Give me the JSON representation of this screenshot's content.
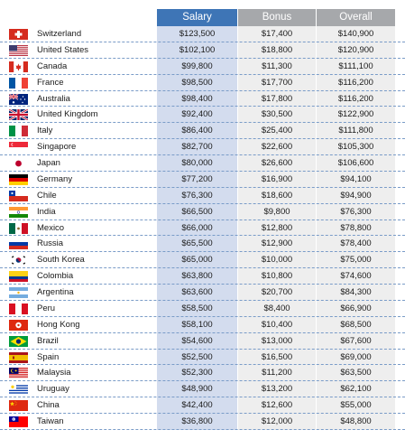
{
  "columns": {
    "salary": "Salary",
    "bonus": "Bonus",
    "overall": "Overall"
  },
  "colors": {
    "salary_header": "#3e75b6",
    "other_header": "#a6a8ab",
    "salary_column": "#d3dcee",
    "other_column": "#eeeeee",
    "row_divider": "#7a9cc8"
  },
  "rows": [
    {
      "country": "Switzerland",
      "flag": "switzerland-flag-icon",
      "salary": "$123,500",
      "bonus": "$17,400",
      "overall": "$140,900"
    },
    {
      "country": "United States",
      "flag": "united-states-flag-icon",
      "salary": "$102,100",
      "bonus": "$18,800",
      "overall": "$120,900"
    },
    {
      "country": "Canada",
      "flag": "canada-flag-icon",
      "salary": "$99,800",
      "bonus": "$11,300",
      "overall": "$111,100"
    },
    {
      "country": "France",
      "flag": "france-flag-icon",
      "salary": "$98,500",
      "bonus": "$17,700",
      "overall": "$116,200"
    },
    {
      "country": "Australia",
      "flag": "australia-flag-icon",
      "salary": "$98,400",
      "bonus": "$17,800",
      "overall": "$116,200"
    },
    {
      "country": "United Kingdom",
      "flag": "united-kingdom-flag-icon",
      "salary": "$92,400",
      "bonus": "$30,500",
      "overall": "$122,900"
    },
    {
      "country": "Italy",
      "flag": "italy-flag-icon",
      "salary": "$86,400",
      "bonus": "$25,400",
      "overall": "$111,800"
    },
    {
      "country": "Singapore",
      "flag": "singapore-flag-icon",
      "salary": "$82,700",
      "bonus": "$22,600",
      "overall": "$105,300"
    },
    {
      "country": "Japan",
      "flag": "japan-flag-icon",
      "salary": "$80,000",
      "bonus": "$26,600",
      "overall": "$106,600"
    },
    {
      "country": "Germany",
      "flag": "germany-flag-icon",
      "salary": "$77,200",
      "bonus": "$16,900",
      "overall": "$94,100"
    },
    {
      "country": "Chile",
      "flag": "chile-flag-icon",
      "salary": "$76,300",
      "bonus": "$18,600",
      "overall": "$94,900"
    },
    {
      "country": "India",
      "flag": "india-flag-icon",
      "salary": "$66,500",
      "bonus": "$9,800",
      "overall": "$76,300"
    },
    {
      "country": "Mexico",
      "flag": "mexico-flag-icon",
      "salary": "$66,000",
      "bonus": "$12,800",
      "overall": "$78,800"
    },
    {
      "country": "Russia",
      "flag": "russia-flag-icon",
      "salary": "$65,500",
      "bonus": "$12,900",
      "overall": "$78,400"
    },
    {
      "country": "South Korea",
      "flag": "south-korea-flag-icon",
      "salary": "$65,000",
      "bonus": "$10,000",
      "overall": "$75,000"
    },
    {
      "country": "Colombia",
      "flag": "colombia-flag-icon",
      "salary": "$63,800",
      "bonus": "$10,800",
      "overall": "$74,600"
    },
    {
      "country": "Argentina",
      "flag": "argentina-flag-icon",
      "salary": "$63,600",
      "bonus": "$20,700",
      "overall": "$84,300"
    },
    {
      "country": "Peru",
      "flag": "peru-flag-icon",
      "salary": "$58,500",
      "bonus": "$8,400",
      "overall": "$66,900"
    },
    {
      "country": "Hong Kong",
      "flag": "hong-kong-flag-icon",
      "salary": "$58,100",
      "bonus": "$10,400",
      "overall": "$68,500"
    },
    {
      "country": "Brazil",
      "flag": "brazil-flag-icon",
      "salary": "$54,600",
      "bonus": "$13,000",
      "overall": "$67,600"
    },
    {
      "country": "Spain",
      "flag": "spain-flag-icon",
      "salary": "$52,500",
      "bonus": "$16,500",
      "overall": "$69,000"
    },
    {
      "country": "Malaysia",
      "flag": "malaysia-flag-icon",
      "salary": "$52,300",
      "bonus": "$11,200",
      "overall": "$63,500"
    },
    {
      "country": "Uruguay",
      "flag": "uruguay-flag-icon",
      "salary": "$48,900",
      "bonus": "$13,200",
      "overall": "$62,100"
    },
    {
      "country": "China",
      "flag": "china-flag-icon",
      "salary": "$42,400",
      "bonus": "$12,600",
      "overall": "$55,000"
    },
    {
      "country": "Taiwan",
      "flag": "taiwan-flag-icon",
      "salary": "$36,800",
      "bonus": "$12,000",
      "overall": "$48,800"
    }
  ]
}
